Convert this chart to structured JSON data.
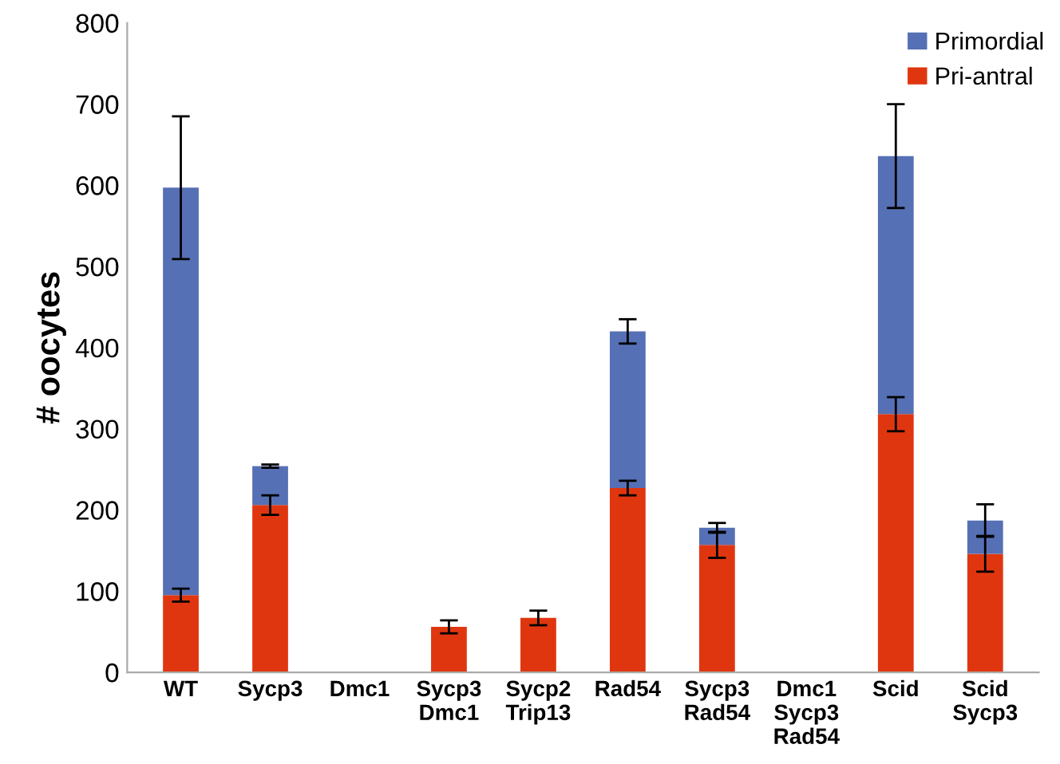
{
  "chart_data": {
    "type": "bar",
    "stacked": true,
    "ylabel": "# oocytes",
    "categories": [
      "WT",
      "Sycp3",
      "Dmc1",
      "Sycp3\nDmc1",
      "Sycp2\nTrip13",
      "Rad54",
      "Sycp3\nRad54",
      "Dmc1\nSycp3\nRad54",
      "Scid",
      "Scid\nSycp3"
    ],
    "series": [
      {
        "name": "Pri-antral",
        "color": "#e0360f",
        "values": [
          95,
          206,
          0,
          56,
          67,
          227,
          157,
          0,
          318,
          146
        ],
        "errors": [
          8,
          12,
          null,
          8,
          9,
          9,
          16,
          null,
          21,
          22
        ]
      },
      {
        "name": "Primordial",
        "color": "#5670b5",
        "values": [
          502,
          48,
          0,
          0,
          0,
          193,
          21,
          0,
          318,
          41
        ],
        "errors": [
          88,
          2,
          null,
          null,
          null,
          15,
          6,
          null,
          64,
          20
        ]
      }
    ],
    "ylim": [
      0,
      800
    ],
    "yticks": [
      0,
      100,
      200,
      300,
      400,
      500,
      600,
      700,
      800
    ],
    "legend": "top right",
    "grid": false
  }
}
